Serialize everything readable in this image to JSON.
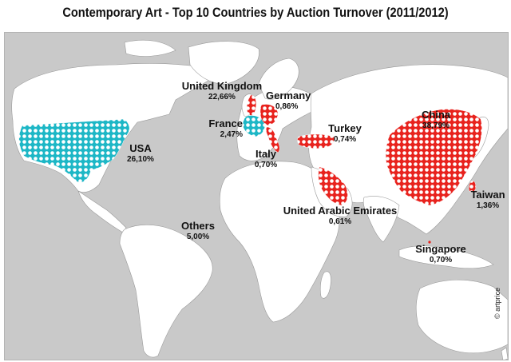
{
  "title": "Contemporary Art - Top 10 Countries by Auction Turnover (2011/2012)",
  "colors": {
    "ocean": "#c9c9c9",
    "land": "#ffffff",
    "highlight_red": "#e8221d",
    "highlight_cyan": "#1db7c6",
    "pattern_dot": "#ffffff"
  },
  "countries": [
    {
      "id": "usa",
      "name": "USA",
      "share": "26,10%",
      "share_value": 26.1,
      "color": "cyan"
    },
    {
      "id": "united-kingdom",
      "name": "United Kingdom",
      "share": "22,66%",
      "share_value": 22.66,
      "color": "red"
    },
    {
      "id": "germany",
      "name": "Germany",
      "share": "0,86%",
      "share_value": 0.86,
      "color": "red"
    },
    {
      "id": "france",
      "name": "France",
      "share": "2,47%",
      "share_value": 2.47,
      "color": "cyan"
    },
    {
      "id": "italy",
      "name": "Italy",
      "share": "0,70%",
      "share_value": 0.7,
      "color": "red"
    },
    {
      "id": "turkey",
      "name": "Turkey",
      "share": "0,74%",
      "share_value": 0.74,
      "color": "red"
    },
    {
      "id": "china",
      "name": "China",
      "share": "38,79%",
      "share_value": 38.79,
      "color": "red"
    },
    {
      "id": "taiwan",
      "name": "Taiwan",
      "share": "1,36%",
      "share_value": 1.36,
      "color": "red"
    },
    {
      "id": "united-arab-emirates",
      "name": "United Arabic Emirates",
      "share": "0,61%",
      "share_value": 0.61,
      "color": "red"
    },
    {
      "id": "singapore",
      "name": "Singapore",
      "share": "0,70%",
      "share_value": 0.7,
      "color": "red"
    },
    {
      "id": "others",
      "name": "Others",
      "share": "5,00%",
      "share_value": 5.0,
      "color": "none"
    }
  ],
  "credit": "© artprice"
}
